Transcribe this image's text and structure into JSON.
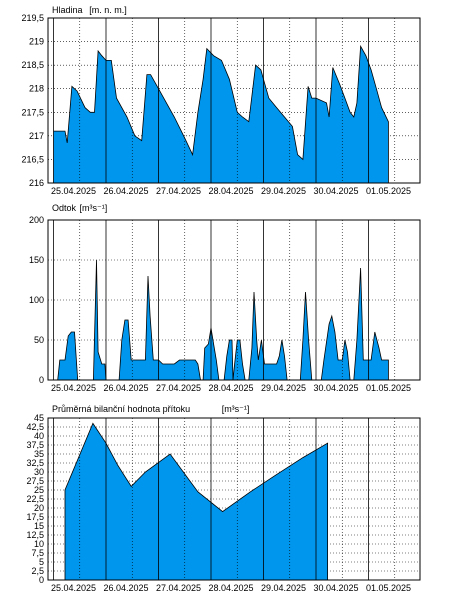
{
  "chart_data": [
    {
      "type": "area",
      "title": "Hladina",
      "unit": "[m. n. m.]",
      "x_tick_labels": [
        "25.04.2025",
        "26.04.2025",
        "27.04.2025",
        "28.04.2025",
        "29.04.2025",
        "30.04.2025",
        "01.05.2025"
      ],
      "x_range_days": [
        0,
        7
      ],
      "ylim": [
        216,
        219.5
      ],
      "y_ticks": [
        216,
        216.5,
        217,
        217.5,
        218,
        218.5,
        219,
        219.5
      ],
      "y_tick_labels": [
        "216",
        "216,5",
        "217",
        "217,5",
        "218",
        "218,5",
        "219",
        "219,5"
      ],
      "grid": "dotted",
      "fill_color": "#0096ee",
      "points": [
        [
          0,
          217.1
        ],
        [
          0.22,
          217.1
        ],
        [
          0.26,
          216.85
        ],
        [
          0.35,
          218.05
        ],
        [
          0.45,
          217.95
        ],
        [
          0.6,
          217.6
        ],
        [
          0.7,
          217.5
        ],
        [
          0.78,
          217.5
        ],
        [
          0.85,
          218.8
        ],
        [
          0.92,
          218.7
        ],
        [
          1.0,
          218.6
        ],
        [
          1.1,
          218.6
        ],
        [
          1.2,
          217.8
        ],
        [
          1.4,
          217.4
        ],
        [
          1.55,
          217.0
        ],
        [
          1.68,
          216.9
        ],
        [
          1.78,
          218.3
        ],
        [
          1.85,
          218.3
        ],
        [
          2.0,
          218.0
        ],
        [
          2.3,
          217.4
        ],
        [
          2.5,
          216.95
        ],
        [
          2.65,
          216.6
        ],
        [
          2.75,
          217.5
        ],
        [
          2.85,
          218.2
        ],
        [
          2.92,
          218.85
        ],
        [
          3.05,
          218.7
        ],
        [
          3.2,
          218.6
        ],
        [
          3.35,
          218.2
        ],
        [
          3.5,
          217.5
        ],
        [
          3.6,
          217.4
        ],
        [
          3.72,
          217.3
        ],
        [
          3.85,
          218.5
        ],
        [
          3.95,
          218.4
        ],
        [
          4.0,
          218.2
        ],
        [
          4.1,
          217.8
        ],
        [
          4.25,
          217.6
        ],
        [
          4.4,
          217.4
        ],
        [
          4.55,
          217.2
        ],
        [
          4.65,
          216.6
        ],
        [
          4.75,
          216.5
        ],
        [
          4.85,
          218.05
        ],
        [
          4.92,
          217.8
        ],
        [
          5.0,
          217.8
        ],
        [
          5.2,
          217.7
        ],
        [
          5.25,
          217.4
        ],
        [
          5.32,
          218.45
        ],
        [
          5.45,
          218.1
        ],
        [
          5.55,
          217.8
        ],
        [
          5.65,
          217.5
        ],
        [
          5.72,
          217.4
        ],
        [
          5.78,
          217.7
        ],
        [
          5.85,
          218.9
        ],
        [
          5.95,
          218.7
        ],
        [
          6.05,
          218.4
        ],
        [
          6.15,
          218.0
        ],
        [
          6.25,
          217.6
        ],
        [
          6.38,
          217.3
        ],
        [
          6.38,
          216
        ]
      ]
    },
    {
      "type": "area",
      "title": "Odtok",
      "unit": "[m³s⁻¹]",
      "x_tick_labels": [
        "25.04.2025",
        "26.04.2025",
        "27.04.2025",
        "28.04.2025",
        "29.04.2025",
        "30.04.2025",
        "01.05.2025"
      ],
      "x_range_days": [
        0,
        7
      ],
      "ylim": [
        0,
        200
      ],
      "y_ticks": [
        0,
        50,
        100,
        150,
        200
      ],
      "y_tick_labels": [
        "0",
        "50",
        "100",
        "150",
        "200"
      ],
      "grid": "dotted",
      "fill_color": "#0096ee",
      "points": [
        [
          0,
          0
        ],
        [
          0.08,
          0
        ],
        [
          0.12,
          25
        ],
        [
          0.22,
          25
        ],
        [
          0.28,
          55
        ],
        [
          0.34,
          60
        ],
        [
          0.4,
          60
        ],
        [
          0.46,
          0
        ],
        [
          0.76,
          0
        ],
        [
          0.82,
          150
        ],
        [
          0.85,
          35
        ],
        [
          0.92,
          20
        ],
        [
          0.98,
          20
        ],
        [
          1.0,
          0
        ],
        [
          1.25,
          0
        ],
        [
          1.3,
          50
        ],
        [
          1.36,
          75
        ],
        [
          1.42,
          75
        ],
        [
          1.48,
          25
        ],
        [
          1.75,
          25
        ],
        [
          1.8,
          130
        ],
        [
          1.84,
          80
        ],
        [
          1.9,
          25
        ],
        [
          2.0,
          25
        ],
        [
          2.08,
          20
        ],
        [
          2.3,
          20
        ],
        [
          2.4,
          25
        ],
        [
          2.7,
          25
        ],
        [
          2.75,
          20
        ],
        [
          2.8,
          0
        ],
        [
          2.85,
          0
        ],
        [
          2.88,
          40
        ],
        [
          2.95,
          45
        ],
        [
          3.0,
          65
        ],
        [
          3.05,
          45
        ],
        [
          3.1,
          25
        ],
        [
          3.15,
          0
        ],
        [
          3.25,
          0
        ],
        [
          3.3,
          30
        ],
        [
          3.35,
          50
        ],
        [
          3.4,
          50
        ],
        [
          3.42,
          0
        ],
        [
          3.45,
          20
        ],
        [
          3.5,
          50
        ],
        [
          3.55,
          50
        ],
        [
          3.6,
          20
        ],
        [
          3.65,
          0
        ],
        [
          3.72,
          0
        ],
        [
          3.78,
          40
        ],
        [
          3.82,
          110
        ],
        [
          3.87,
          50
        ],
        [
          3.9,
          25
        ],
        [
          3.96,
          50
        ],
        [
          4.02,
          20
        ],
        [
          4.25,
          20
        ],
        [
          4.3,
          30
        ],
        [
          4.35,
          50
        ],
        [
          4.4,
          30
        ],
        [
          4.45,
          0
        ],
        [
          4.7,
          0
        ],
        [
          4.75,
          50
        ],
        [
          4.8,
          110
        ],
        [
          4.86,
          50
        ],
        [
          4.92,
          0
        ],
        [
          4.96,
          0
        ],
        [
          5.1,
          0
        ],
        [
          5.15,
          25
        ],
        [
          5.25,
          70
        ],
        [
          5.3,
          80
        ],
        [
          5.36,
          60
        ],
        [
          5.42,
          25
        ],
        [
          5.5,
          25
        ],
        [
          5.55,
          50
        ],
        [
          5.6,
          35
        ],
        [
          5.65,
          0
        ],
        [
          5.72,
          0
        ],
        [
          5.78,
          50
        ],
        [
          5.85,
          140
        ],
        [
          5.9,
          25
        ],
        [
          6.05,
          25
        ],
        [
          6.12,
          60
        ],
        [
          6.2,
          40
        ],
        [
          6.25,
          25
        ],
        [
          6.38,
          25
        ],
        [
          6.38,
          0
        ]
      ]
    },
    {
      "type": "area",
      "title": "Průměrná bilanční hodnota přítoku",
      "unit": "[m³s⁻¹]",
      "x_tick_labels": [
        "25.04.2025",
        "26.04.2025",
        "27.04.2025",
        "28.04.2025",
        "29.04.2025",
        "30.04.2025",
        "01.05.2025"
      ],
      "x_range_days": [
        0,
        7
      ],
      "ylim": [
        0,
        45
      ],
      "y_ticks": [
        0,
        2.5,
        5,
        7.5,
        10,
        12.5,
        15,
        17.5,
        20,
        22.5,
        25,
        27.5,
        30,
        32.5,
        35,
        37.5,
        40,
        42.5,
        45
      ],
      "y_tick_labels": [
        "0",
        "2,5",
        "5",
        "7,5",
        "10",
        "12,5",
        "15",
        "17,5",
        "20",
        "22,5",
        "25",
        "27,5",
        "30",
        "32,5",
        "35",
        "37,5",
        "40",
        "42,5",
        "45"
      ],
      "grid": "dotted",
      "fill_color": "#0096ee",
      "points": [
        [
          0.22,
          0
        ],
        [
          0.22,
          25
        ],
        [
          0.75,
          43.5
        ],
        [
          1.0,
          38
        ],
        [
          1.22,
          32
        ],
        [
          1.48,
          26
        ],
        [
          1.75,
          30
        ],
        [
          2.22,
          35
        ],
        [
          2.75,
          24.5
        ],
        [
          3.22,
          19
        ],
        [
          3.75,
          24.5
        ],
        [
          4.22,
          29
        ],
        [
          4.75,
          34
        ],
        [
          5.22,
          38
        ],
        [
          5.22,
          0
        ]
      ]
    }
  ]
}
